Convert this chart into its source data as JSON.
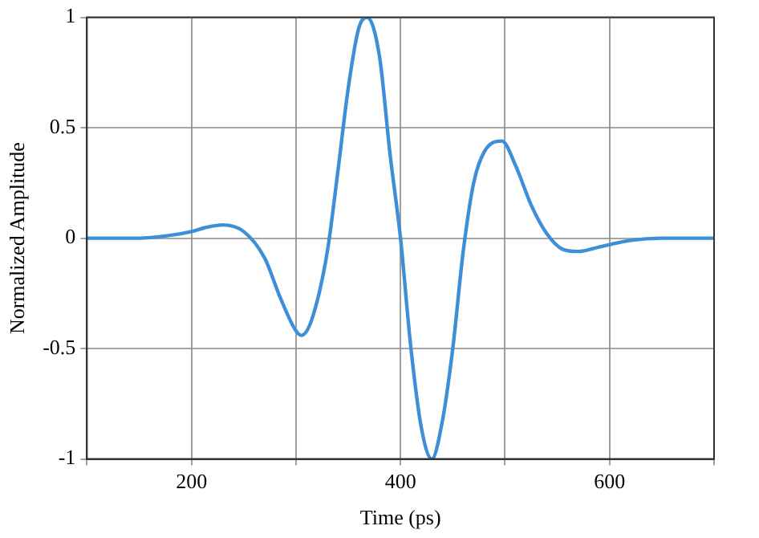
{
  "chart_data": {
    "type": "line",
    "xlabel": "Time (ps)",
    "ylabel": "Normalized Amplitude",
    "x": [
      100,
      150,
      175,
      200,
      215,
      230,
      250,
      270,
      285,
      300,
      305,
      315,
      330,
      340,
      350,
      360,
      368,
      380,
      390,
      400,
      410,
      420,
      430,
      440,
      450,
      460,
      470,
      480,
      497,
      510,
      525,
      540,
      555,
      570,
      590,
      620,
      650,
      700
    ],
    "series": [
      {
        "color": "#3f8fd8",
        "values": [
          0,
          0,
          0.01,
          0.03,
          0.05,
          0.06,
          0.03,
          -0.09,
          -0.27,
          -0.42,
          -0.44,
          -0.37,
          -0.06,
          0.3,
          0.68,
          0.95,
          1,
          0.82,
          0.38,
          0,
          -0.5,
          -0.86,
          -1,
          -0.83,
          -0.5,
          -0.06,
          0.25,
          0.39,
          0.44,
          0.33,
          0.15,
          0.02,
          -0.05,
          -0.06,
          -0.04,
          -0.01,
          0,
          0
        ]
      }
    ],
    "xlim": [
      100,
      700
    ],
    "xticks": [
      {
        "value": 100,
        "label": null
      },
      200,
      {
        "value": 300,
        "label": null
      },
      400,
      {
        "value": 500,
        "label": null
      },
      600,
      {
        "value": 700,
        "label": null
      }
    ],
    "ylim": [
      -1,
      1
    ],
    "yticks": [
      -1,
      -0.5,
      0,
      0.5,
      1
    ],
    "grid": true,
    "marker": "none",
    "line_style": "solid",
    "legend": false
  }
}
